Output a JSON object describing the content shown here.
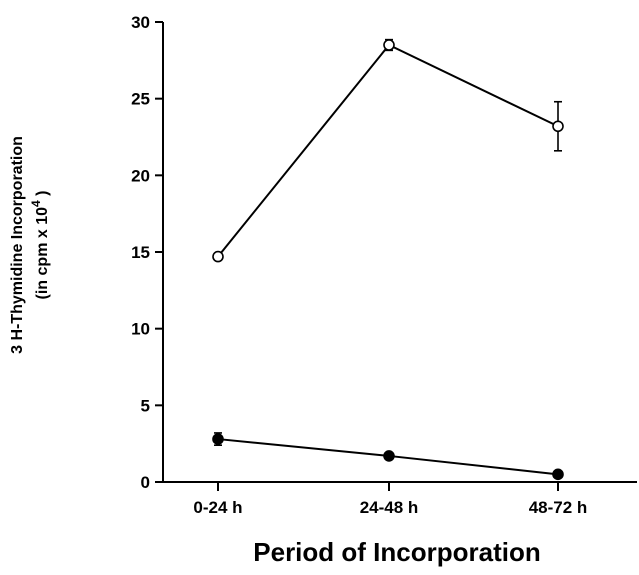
{
  "chart_data": {
    "type": "line",
    "categories": [
      "0-24 h",
      "24-48 h",
      "48-72 h"
    ],
    "xlabel": "Period of Incorporation",
    "ylabel_line1": "3 H-Thymidine Incorporation",
    "ylabel_line2_prefix": "(in cpm x 10",
    "ylabel_line2_exponent": "4",
    "ylabel_line2_suffix": " )",
    "ylim": [
      0,
      30
    ],
    "yticks": [
      "0",
      "5",
      "10",
      "15",
      "20",
      "25",
      "30"
    ],
    "grid": false,
    "series": [
      {
        "marker": "open-circle",
        "values": [
          14.7,
          28.5,
          23.2
        ],
        "errors": [
          0.1,
          0.35,
          1.6
        ]
      },
      {
        "marker": "filled-circle",
        "values": [
          2.8,
          1.7,
          0.5
        ],
        "errors": [
          0.4,
          0.1,
          0.1
        ]
      }
    ]
  }
}
